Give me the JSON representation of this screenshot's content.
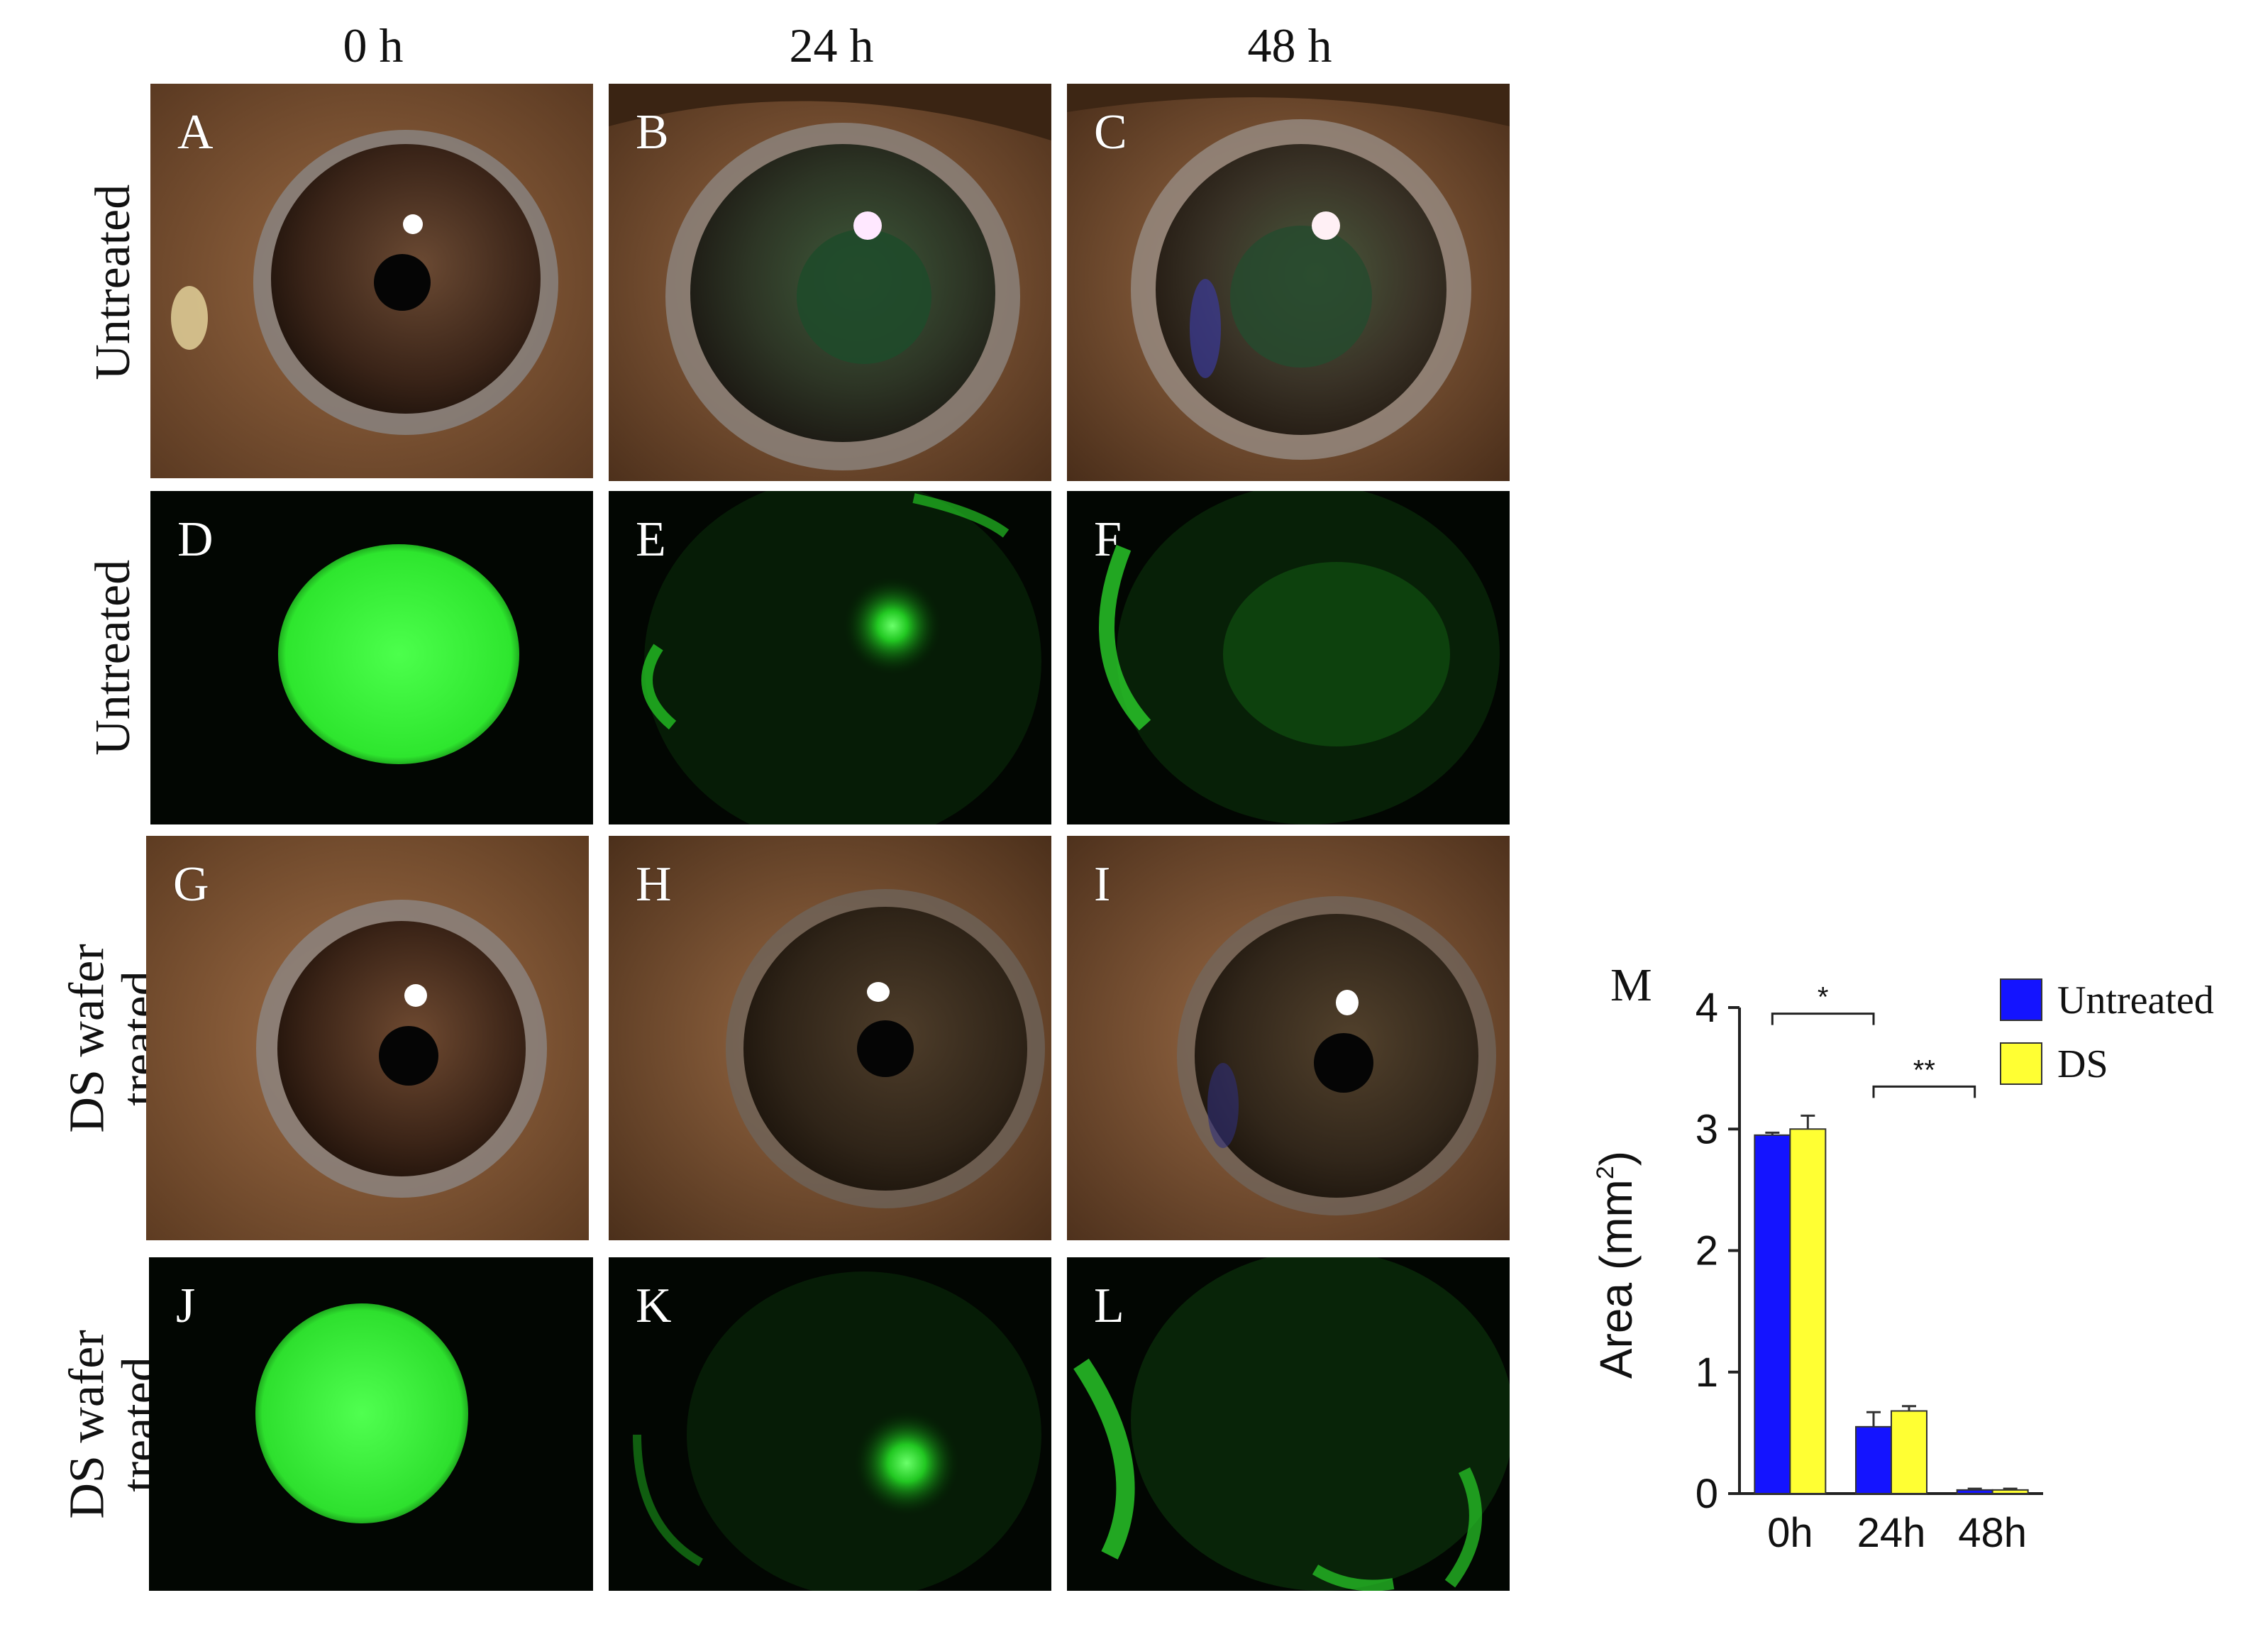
{
  "columns": [
    "0 h",
    "24 h",
    "48 h"
  ],
  "rows": [
    {
      "label_lines": [
        "Untreated"
      ]
    },
    {
      "label_lines": [
        "Untreated"
      ]
    },
    {
      "label_lines": [
        "DS wafer",
        "treated"
      ]
    },
    {
      "label_lines": [
        "DS wafer",
        "treated"
      ]
    }
  ],
  "panels": [
    {
      "letter": "A",
      "kind": "photo"
    },
    {
      "letter": "B",
      "kind": "photo"
    },
    {
      "letter": "C",
      "kind": "photo"
    },
    {
      "letter": "D",
      "kind": "fluorescence"
    },
    {
      "letter": "E",
      "kind": "fluorescence"
    },
    {
      "letter": "F",
      "kind": "fluorescence"
    },
    {
      "letter": "G",
      "kind": "photo"
    },
    {
      "letter": "H",
      "kind": "photo"
    },
    {
      "letter": "I",
      "kind": "photo"
    },
    {
      "letter": "J",
      "kind": "fluorescence"
    },
    {
      "letter": "K",
      "kind": "fluorescence"
    },
    {
      "letter": "L",
      "kind": "fluorescence"
    }
  ],
  "colors": {
    "untreated": "#1414ff",
    "ds": "#ffff33",
    "fluor_green": "#39ff39",
    "photo_brown": "#7a4e2c"
  },
  "chart_data": {
    "panel_letter": "M",
    "type": "bar",
    "categories": [
      "0h",
      "24h",
      "48h"
    ],
    "series": [
      {
        "name": "Untreated",
        "values": [
          2.95,
          0.55,
          0.03
        ],
        "errors": [
          0.02,
          0.12,
          0.01
        ]
      },
      {
        "name": "DS",
        "values": [
          3.0,
          0.68,
          0.03
        ],
        "errors": [
          0.11,
          0.04,
          0.01
        ]
      }
    ],
    "ylabel": "Area (mm",
    "ylabel_sup": "2",
    "ylabel_end": ")",
    "ylim": [
      0,
      4
    ],
    "yticks": [
      0,
      1,
      2,
      3,
      4
    ],
    "significance": [
      {
        "label": "*",
        "from": [
          "0h",
          "Untreated"
        ],
        "to": [
          "24h",
          "Untreated"
        ]
      },
      {
        "label": "**",
        "from": [
          "24h",
          "Untreated"
        ],
        "to": [
          "48h",
          "Untreated"
        ]
      }
    ],
    "legend_position": "top-right",
    "grid": false
  }
}
